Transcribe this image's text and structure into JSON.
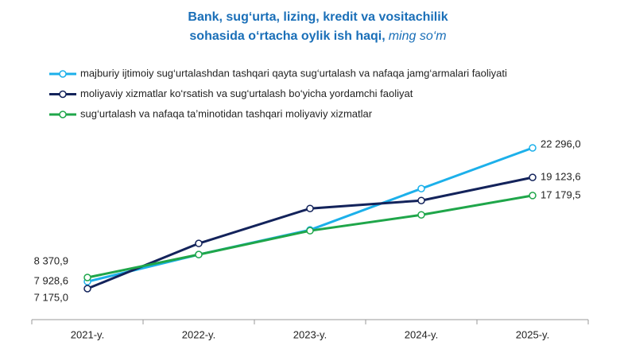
{
  "chart_data": {
    "type": "line",
    "title": [
      "Bank, sug‘urta, lizing, kredit va vositachilik",
      "sohasida o‘rtacha oylik ish haqi,"
    ],
    "subtitle": "ming so‘m",
    "categories": [
      "2021-y.",
      "2022-y.",
      "2023-y.",
      "2024-y.",
      "2025-y."
    ],
    "series": [
      {
        "name": "majburiy ijtimoiy sug‘urtalashdan tashqari qayta sug‘urtalash va nafaqa jamg‘armalari faoliyati",
        "color": "#1cb0ea",
        "label_color": "#3a7dbf",
        "values": [
          7928.6,
          10836,
          13481,
          17918,
          22296.0
        ],
        "value_labels": [
          "7 928,6",
          null,
          null,
          null,
          "22 296,0"
        ]
      },
      {
        "name": "moliyaviy xizmatlar ko‘rsatish va sug‘urtalash bo‘yicha yordamchi faoliyat",
        "color": "#13235b",
        "label_color": "#13235b",
        "values": [
          7175.0,
          12031,
          15785,
          16638,
          19123.6
        ],
        "value_labels": [
          "7 175,0",
          null,
          null,
          null,
          "19 123,6"
        ]
      },
      {
        "name": "sug‘urtalash va nafaqa ta’minotidan tashqari moliyaviy xizmatlar",
        "color": "#1fa64a",
        "label_color": "#1fa64a",
        "values": [
          8370.9,
          10836,
          13396,
          15102,
          17179.5
        ],
        "value_labels": [
          "8 370,9",
          null,
          null,
          null,
          "17 179,5"
        ]
      }
    ]
  }
}
